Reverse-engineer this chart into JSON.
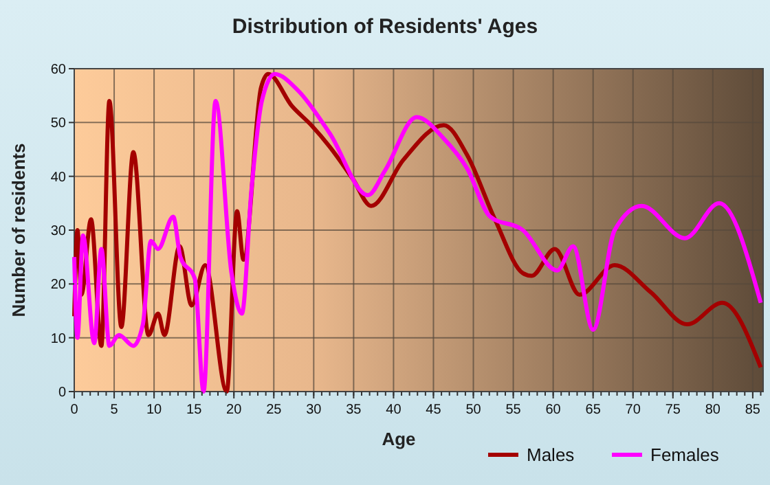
{
  "chart_data": {
    "type": "line",
    "title": "Distribution of Residents' Ages",
    "xlabel": "Age",
    "ylabel": "Number of residents",
    "xlim": [
      0,
      86.3
    ],
    "xticks": [
      0,
      5,
      10,
      15,
      20,
      25,
      30,
      35,
      40,
      45,
      50,
      55,
      60,
      65,
      70,
      75,
      80,
      85
    ],
    "ylim": [
      0,
      60
    ],
    "yticks": [
      0,
      10,
      20,
      30,
      40,
      50,
      60
    ],
    "grid": true,
    "legend": "bottom right",
    "marker": "none",
    "line_style": "solid",
    "series": [
      {
        "name": "Males",
        "color": "#a40000",
        "x": [
          0,
          0.4,
          0.9,
          2.1,
          3.4,
          4.4,
          5.9,
          7.4,
          9.3,
          10.5,
          11.3,
          13.2,
          14.7,
          16.4,
          19.1,
          20.4,
          21.2,
          23.4,
          24.3,
          27.3,
          29.7,
          32,
          34.9,
          37.2,
          41.2,
          46.3,
          49.2,
          52.7,
          56.2,
          57.3,
          60.2,
          63.3,
          67.7,
          72.2,
          76.8,
          81.2,
          86
        ],
        "values": [
          14,
          30,
          18,
          32,
          8.5,
          54,
          12,
          44.5,
          10.5,
          14.5,
          10.5,
          27,
          16,
          23.5,
          0,
          33.5,
          24.5,
          56.5,
          59,
          53,
          49.5,
          45.5,
          39.5,
          34.5,
          43,
          49.5,
          44,
          32,
          22,
          21.5,
          26.5,
          18,
          23.5,
          18.5,
          12.5,
          16.5,
          4.5
        ]
      },
      {
        "name": "Females",
        "color": "#ff00ff",
        "x": [
          0,
          0.4,
          1.1,
          2.5,
          3.4,
          4.4,
          5.6,
          7.4,
          8.6,
          9.6,
          10.5,
          12.4,
          13.3,
          15.1,
          16.2,
          17.7,
          19.7,
          21,
          22.2,
          23.5,
          25.1,
          28,
          32,
          36.8,
          38.9,
          42.9,
          46.3,
          49.2,
          52.1,
          56.2,
          60.5,
          62.5,
          65,
          67.7,
          71.1,
          76.5,
          80.8,
          86
        ],
        "values": [
          25,
          10,
          29,
          9,
          26.5,
          8.5,
          10.5,
          8.5,
          12.5,
          28,
          26.5,
          32.5,
          25,
          21,
          0,
          54,
          22,
          14.5,
          37.5,
          54,
          59,
          56,
          48,
          36.5,
          41,
          51,
          47,
          41.5,
          32.5,
          30,
          22.5,
          27,
          11.5,
          30,
          34.5,
          28.5,
          35,
          16.5
        ]
      }
    ]
  }
}
